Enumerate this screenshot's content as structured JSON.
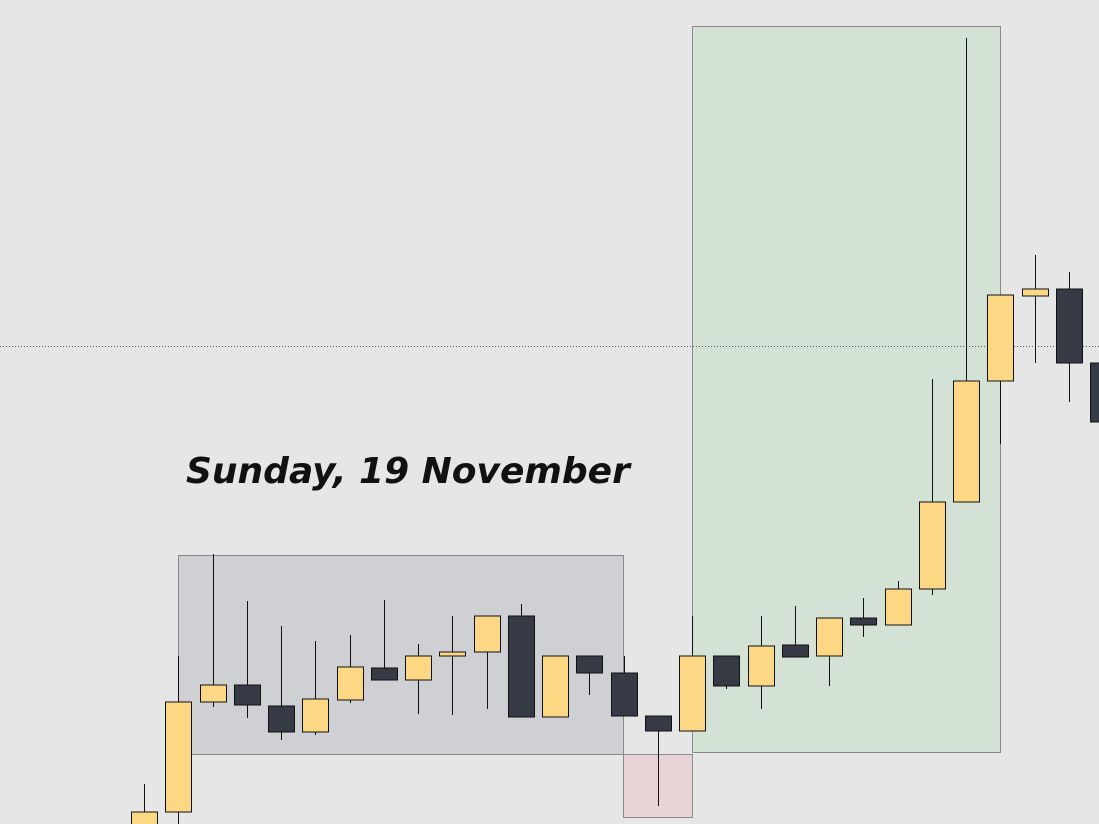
{
  "chart_data": {
    "type": "candlestick",
    "annotation": "Sunday, 19 November",
    "up_color": "#fdd884",
    "down_color": "#363a45",
    "ylim": [
      0,
      824
    ],
    "open": [
      -6,
      12,
      122,
      139,
      118,
      92,
      124,
      156,
      144,
      168,
      172,
      208,
      107,
      168,
      151,
      108,
      93,
      168,
      138,
      179,
      168,
      206,
      199,
      235,
      322,
      443,
      528,
      535,
      461
    ],
    "high": [
      40,
      168,
      270,
      223,
      198,
      183,
      189,
      224,
      180,
      208,
      208,
      220,
      168,
      168,
      168,
      108,
      208,
      168,
      208,
      218,
      206,
      226,
      243,
      445,
      786,
      529,
      569,
      552,
      461
    ],
    "low": [
      -6,
      0,
      117,
      106,
      84,
      89,
      121,
      144,
      110,
      109,
      115,
      107,
      107,
      129,
      108,
      18,
      93,
      135,
      115,
      167,
      138,
      187,
      199,
      229,
      322,
      380,
      461,
      422,
      402
    ],
    "close": [
      12,
      122,
      139,
      119,
      92,
      125,
      157,
      144,
      168,
      172,
      208,
      107,
      168,
      151,
      108,
      93,
      168,
      138,
      178,
      167,
      206,
      199,
      235,
      322,
      443,
      529,
      535,
      461,
      402
    ]
  }
}
